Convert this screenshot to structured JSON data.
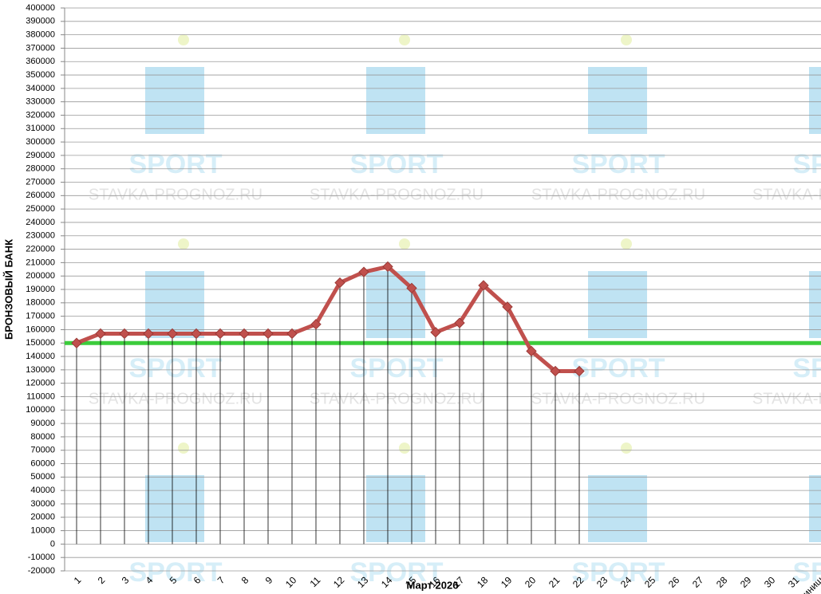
{
  "chart_data": {
    "type": "line",
    "x_label": "Март 2026",
    "y_label": "БРОНЗОВЫЙ БАНК",
    "categories": [
      "1",
      "2",
      "3",
      "4",
      "5",
      "6",
      "7",
      "8",
      "9",
      "10",
      "11",
      "12",
      "13",
      "14",
      "15",
      "16",
      "17",
      "18",
      "19",
      "20",
      "21",
      "22",
      "23",
      "24",
      "25",
      "26",
      "27",
      "28",
      "29",
      "30",
      "31",
      "Финиш"
    ],
    "series": [
      {
        "name": "БРОНЗОВЫЙ БАНК",
        "color": "#c0504d",
        "values": [
          150000,
          157000,
          157000,
          157000,
          157000,
          157000,
          157000,
          157000,
          157000,
          157000,
          164000,
          195000,
          203000,
          207000,
          191000,
          158000,
          165000,
          193000,
          177000,
          144000,
          129000,
          129000,
          null,
          null,
          null,
          null,
          null,
          null,
          null,
          null,
          null,
          null
        ]
      }
    ],
    "reference_line": {
      "value": 150000,
      "color": "#3ccc3c"
    },
    "ylim": [
      -20000,
      400000
    ],
    "yticks": [
      -20000,
      -10000,
      0,
      10000,
      20000,
      30000,
      40000,
      50000,
      60000,
      70000,
      80000,
      90000,
      100000,
      110000,
      120000,
      130000,
      140000,
      150000,
      160000,
      170000,
      180000,
      190000,
      200000,
      210000,
      220000,
      230000,
      240000,
      250000,
      260000,
      270000,
      280000,
      290000,
      300000,
      310000,
      320000,
      330000,
      340000,
      350000,
      360000,
      370000,
      380000,
      390000,
      400000
    ],
    "grid": true,
    "drop_lines": true,
    "watermark": [
      "SPORT",
      "STAVKA-PROGNOZ.RU"
    ]
  }
}
